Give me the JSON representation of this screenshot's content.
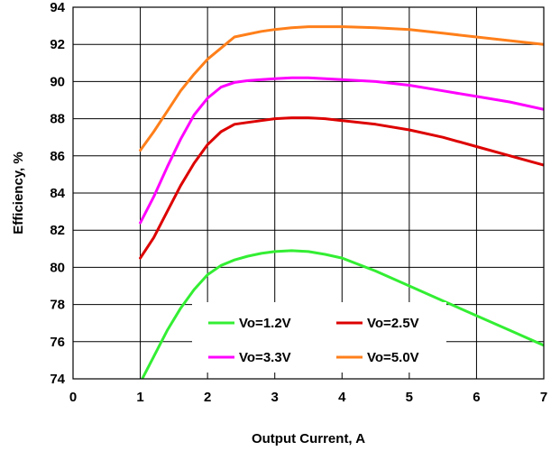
{
  "chart_data": {
    "type": "line",
    "title": "",
    "xlabel": "Output Current, A",
    "ylabel": "Efficiency, %",
    "xlim": [
      0,
      7
    ],
    "ylim": [
      74,
      94
    ],
    "xticks": [
      "0",
      "1",
      "2",
      "3",
      "4",
      "5",
      "6",
      "7"
    ],
    "yticks": [
      "74",
      "76",
      "78",
      "80",
      "82",
      "84",
      "86",
      "88",
      "90",
      "92",
      "94"
    ],
    "grid": true,
    "legend_position": "bottom-center",
    "series": [
      {
        "name": "Vo=1.2V",
        "color": "#33ee33",
        "x": [
          1,
          1.2,
          1.4,
          1.6,
          1.8,
          2.0,
          2.2,
          2.4,
          2.6,
          2.8,
          3.0,
          3.25,
          3.5,
          3.75,
          4.0,
          4.5,
          5.0,
          5.5,
          6.0,
          6.5,
          7.0
        ],
        "y": [
          73.8,
          75.2,
          76.6,
          77.8,
          78.8,
          79.6,
          80.1,
          80.4,
          80.6,
          80.75,
          80.85,
          80.9,
          80.85,
          80.7,
          80.5,
          79.8,
          79.0,
          78.2,
          77.4,
          76.6,
          75.8
        ]
      },
      {
        "name": "Vo=2.5V",
        "color": "#dd0000",
        "x": [
          1,
          1.2,
          1.4,
          1.6,
          1.8,
          2.0,
          2.2,
          2.4,
          2.6,
          2.8,
          3.0,
          3.25,
          3.5,
          3.75,
          4.0,
          4.5,
          5.0,
          5.5,
          6.0,
          6.5,
          7.0
        ],
        "y": [
          80.5,
          81.6,
          83.0,
          84.4,
          85.6,
          86.6,
          87.3,
          87.7,
          87.8,
          87.9,
          88.0,
          88.05,
          88.05,
          88.0,
          87.9,
          87.7,
          87.4,
          87.0,
          86.5,
          86.0,
          85.5
        ]
      },
      {
        "name": "Vo=3.3V",
        "color": "#ff00ff",
        "x": [
          1,
          1.2,
          1.4,
          1.6,
          1.8,
          2.0,
          2.2,
          2.4,
          2.6,
          2.8,
          3.0,
          3.25,
          3.5,
          3.75,
          4.0,
          4.5,
          5.0,
          5.5,
          6.0,
          6.5,
          7.0
        ],
        "y": [
          82.4,
          83.8,
          85.4,
          86.9,
          88.2,
          89.1,
          89.7,
          89.95,
          90.05,
          90.1,
          90.15,
          90.2,
          90.2,
          90.15,
          90.1,
          90.0,
          89.8,
          89.5,
          89.2,
          88.9,
          88.5
        ]
      },
      {
        "name": "Vo=5.0V",
        "color": "#ff7f1a",
        "x": [
          1,
          1.2,
          1.4,
          1.6,
          1.8,
          2.0,
          2.2,
          2.4,
          2.6,
          2.8,
          3.0,
          3.25,
          3.5,
          3.75,
          4.0,
          4.5,
          5.0,
          5.5,
          6.0,
          6.5,
          7.0
        ],
        "y": [
          86.3,
          87.3,
          88.4,
          89.5,
          90.4,
          91.2,
          91.8,
          92.4,
          92.55,
          92.7,
          92.8,
          92.9,
          92.95,
          92.95,
          92.95,
          92.9,
          92.8,
          92.6,
          92.4,
          92.2,
          92.0
        ]
      }
    ]
  }
}
